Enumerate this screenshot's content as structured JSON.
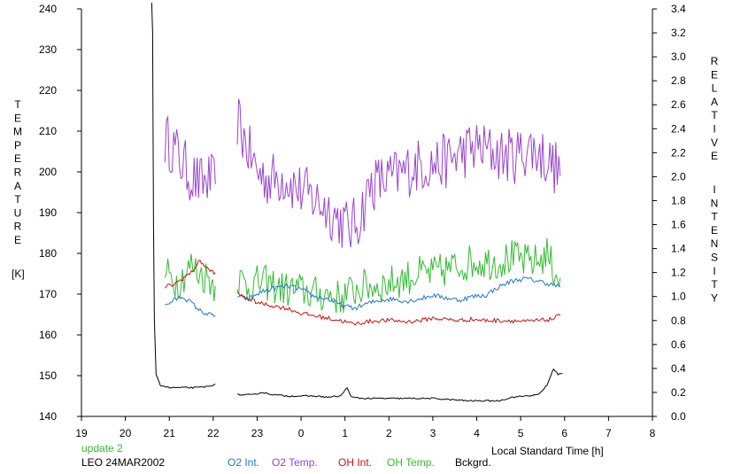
{
  "chart_data": {
    "type": "line",
    "title": "",
    "left_axis_label": [
      "T",
      "E",
      "M",
      "P",
      "E",
      "R",
      "A",
      "T",
      "U",
      "R",
      "E"
    ],
    "left_axis_unit": "[K]",
    "right_axis_label_1": [
      "R",
      "E",
      "L",
      "A",
      "T",
      "I",
      "V",
      "E"
    ],
    "right_axis_label_2": [
      "I",
      "N",
      "T",
      "E",
      "N",
      "S",
      "I",
      "T",
      "Y"
    ],
    "xlabel": "Local Standard Time [h]",
    "x_ticks": [
      "19",
      "20",
      "21",
      "22",
      "23",
      "0",
      "1",
      "2",
      "3",
      "4",
      "5",
      "6",
      "7",
      "8"
    ],
    "x_range_hours": [
      19,
      32
    ],
    "left_ticks": [
      "140",
      "150",
      "160",
      "170",
      "180",
      "190",
      "200",
      "210",
      "220",
      "230",
      "240"
    ],
    "left_range": [
      140,
      240
    ],
    "right_ticks": [
      "0.0",
      "0.2",
      "0.4",
      "0.6",
      "0.8",
      "1.0",
      "1.2",
      "1.4",
      "1.6",
      "1.8",
      "2.0",
      "2.2",
      "2.4",
      "2.6",
      "2.8",
      "3.0",
      "3.2",
      "3.4"
    ],
    "right_range": [
      0,
      3.4
    ],
    "update_note": "update 2",
    "site_date": "LEO 24MAR2002",
    "legend": [
      {
        "name": "O2 Int.",
        "color": "#2277cc"
      },
      {
        "name": "O2 Temp.",
        "color": "#9944cc"
      },
      {
        "name": "OH Int.",
        "color": "#cc1111"
      },
      {
        "name": "OH Temp.",
        "color": "#33bb33"
      },
      {
        "name": "Bckgrd.",
        "color": "#000000"
      }
    ],
    "series": [
      {
        "name": "O2 Temp.",
        "color": "#9944cc",
        "axis": "left",
        "jitter": 7,
        "segments": [
          [
            [
              20.9,
              208
            ],
            [
              21.1,
              206
            ],
            [
              21.3,
              202
            ],
            [
              21.5,
              199
            ],
            [
              21.7,
              197
            ],
            [
              21.9,
              198
            ],
            [
              22.05,
              197
            ]
          ],
          [
            [
              22.55,
              213
            ],
            [
              22.7,
              208
            ],
            [
              23,
              200
            ],
            [
              23.3,
              198
            ],
            [
              23.6,
              199
            ],
            [
              23.9,
              196
            ],
            [
              24.2,
              194
            ],
            [
              24.5,
              192
            ],
            [
              24.8,
              189
            ],
            [
              25.1,
              186
            ],
            [
              25.3,
              188
            ],
            [
              25.6,
              197
            ],
            [
              25.9,
              198
            ],
            [
              26.2,
              199
            ],
            [
              26.5,
              201
            ],
            [
              26.8,
              202
            ],
            [
              27.1,
              202
            ],
            [
              27.4,
              203
            ],
            [
              27.7,
              205
            ],
            [
              28.0,
              206
            ],
            [
              28.3,
              205
            ],
            [
              28.6,
              204
            ],
            [
              28.9,
              204
            ],
            [
              29.2,
              206
            ],
            [
              29.5,
              204
            ],
            [
              29.8,
              201
            ],
            [
              29.9,
              199
            ]
          ]
        ]
      },
      {
        "name": "OH Temp.",
        "color": "#33bb33",
        "axis": "left",
        "jitter": 4.5,
        "segments": [
          [
            [
              20.9,
              175
            ],
            [
              21.2,
              173
            ],
            [
              21.5,
              177
            ],
            [
              21.7,
              175
            ],
            [
              21.9,
              174
            ],
            [
              22.05,
              172
            ]
          ],
          [
            [
              22.55,
              174
            ],
            [
              22.8,
              172
            ],
            [
              23.1,
              173
            ],
            [
              23.4,
              172
            ],
            [
              23.7,
              171
            ],
            [
              24.0,
              171
            ],
            [
              24.3,
              170
            ],
            [
              24.6,
              170
            ],
            [
              24.9,
              169
            ],
            [
              25.2,
              171
            ],
            [
              25.5,
              172
            ],
            [
              25.8,
              172
            ],
            [
              26.1,
              173
            ],
            [
              26.4,
              174
            ],
            [
              26.7,
              175
            ],
            [
              27.0,
              175
            ],
            [
              27.3,
              176
            ],
            [
              27.6,
              177
            ],
            [
              27.9,
              178
            ],
            [
              28.2,
              178
            ],
            [
              28.5,
              178
            ],
            [
              28.8,
              179
            ],
            [
              29.1,
              178
            ],
            [
              29.4,
              178
            ],
            [
              29.6,
              180
            ],
            [
              29.75,
              176
            ],
            [
              29.9,
              174
            ]
          ]
        ]
      },
      {
        "name": "O2 Int.",
        "color": "#2277cc",
        "axis": "right",
        "jitter": 0.02,
        "segments": [
          [
            [
              20.9,
              0.92
            ],
            [
              21.1,
              0.97
            ],
            [
              21.3,
              1.0
            ],
            [
              21.5,
              0.95
            ],
            [
              21.7,
              0.88
            ],
            [
              21.9,
              0.85
            ],
            [
              22.05,
              0.84
            ]
          ],
          [
            [
              22.55,
              1.0
            ],
            [
              22.8,
              0.98
            ],
            [
              23.1,
              1.04
            ],
            [
              23.4,
              1.07
            ],
            [
              23.7,
              1.09
            ],
            [
              24.0,
              1.06
            ],
            [
              24.3,
              1.0
            ],
            [
              24.6,
              0.98
            ],
            [
              24.9,
              0.93
            ],
            [
              25.2,
              0.9
            ],
            [
              25.5,
              0.94
            ],
            [
              25.8,
              0.97
            ],
            [
              26.1,
              0.98
            ],
            [
              26.4,
              0.96
            ],
            [
              26.7,
              0.98
            ],
            [
              27.0,
              1.01
            ],
            [
              27.3,
              0.99
            ],
            [
              27.6,
              0.97
            ],
            [
              27.9,
              1.0
            ],
            [
              28.2,
              1.01
            ],
            [
              28.5,
              1.08
            ],
            [
              28.8,
              1.13
            ],
            [
              29.1,
              1.15
            ],
            [
              29.4,
              1.13
            ],
            [
              29.7,
              1.1
            ],
            [
              29.9,
              1.08
            ]
          ]
        ]
      },
      {
        "name": "OH Int.",
        "color": "#cc1111",
        "axis": "right",
        "jitter": 0.018,
        "segments": [
          [
            [
              20.9,
              1.08
            ],
            [
              21.1,
              1.1
            ],
            [
              21.3,
              1.15
            ],
            [
              21.5,
              1.2
            ],
            [
              21.7,
              1.3
            ],
            [
              21.9,
              1.22
            ],
            [
              22.05,
              1.2
            ]
          ],
          [
            [
              22.55,
              1.02
            ],
            [
              22.8,
              0.98
            ],
            [
              23.1,
              0.94
            ],
            [
              23.4,
              0.92
            ],
            [
              23.7,
              0.9
            ],
            [
              24.0,
              0.86
            ],
            [
              24.3,
              0.84
            ],
            [
              24.6,
              0.82
            ],
            [
              24.9,
              0.8
            ],
            [
              25.2,
              0.77
            ],
            [
              25.5,
              0.79
            ],
            [
              25.8,
              0.8
            ],
            [
              26.1,
              0.8
            ],
            [
              26.4,
              0.79
            ],
            [
              26.7,
              0.8
            ],
            [
              27.0,
              0.82
            ],
            [
              27.3,
              0.81
            ],
            [
              27.6,
              0.8
            ],
            [
              27.9,
              0.81
            ],
            [
              28.2,
              0.8
            ],
            [
              28.5,
              0.8
            ],
            [
              28.8,
              0.8
            ],
            [
              29.1,
              0.79
            ],
            [
              29.4,
              0.8
            ],
            [
              29.7,
              0.81
            ],
            [
              29.9,
              0.84
            ]
          ]
        ]
      },
      {
        "name": "Bckgrd.",
        "color": "#000000",
        "axis": "right",
        "jitter": 0.006,
        "segments": [
          [
            [
              20.6,
              3.45
            ],
            [
              20.62,
              3.2
            ],
            [
              20.64,
              1.6
            ],
            [
              20.66,
              0.8
            ],
            [
              20.7,
              0.35
            ],
            [
              20.8,
              0.26
            ],
            [
              21.0,
              0.24
            ],
            [
              21.3,
              0.24
            ],
            [
              21.6,
              0.24
            ],
            [
              21.9,
              0.25
            ],
            [
              22.05,
              0.27
            ]
          ],
          [
            [
              22.55,
              0.18
            ],
            [
              22.9,
              0.18
            ],
            [
              23.1,
              0.2
            ],
            [
              23.4,
              0.18
            ],
            [
              23.7,
              0.17
            ],
            [
              24.0,
              0.17
            ],
            [
              24.3,
              0.17
            ],
            [
              24.6,
              0.16
            ],
            [
              24.9,
              0.17
            ],
            [
              25.05,
              0.24
            ],
            [
              25.15,
              0.16
            ],
            [
              25.4,
              0.15
            ],
            [
              25.8,
              0.15
            ],
            [
              26.2,
              0.15
            ],
            [
              26.6,
              0.15
            ],
            [
              27.0,
              0.15
            ],
            [
              27.4,
              0.14
            ],
            [
              27.8,
              0.13
            ],
            [
              28.2,
              0.13
            ],
            [
              28.5,
              0.13
            ],
            [
              28.8,
              0.16
            ],
            [
              29.1,
              0.17
            ],
            [
              29.4,
              0.18
            ],
            [
              29.6,
              0.26
            ],
            [
              29.75,
              0.4
            ],
            [
              29.85,
              0.35
            ],
            [
              29.95,
              0.36
            ]
          ]
        ]
      }
    ]
  }
}
